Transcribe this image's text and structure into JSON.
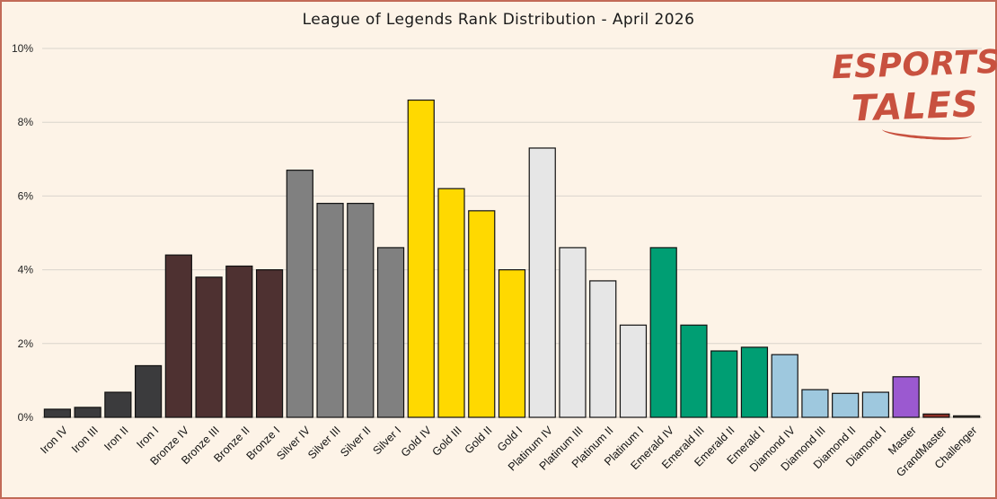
{
  "chart_data": {
    "type": "bar",
    "title": "League of Legends Rank Distribution - April 2026",
    "xlabel": "",
    "ylabel": "",
    "ylim": [
      0,
      10
    ],
    "y_ticks": [
      "0%",
      "2%",
      "4%",
      "6%",
      "8%",
      "10%"
    ],
    "grid": "horizontal",
    "categories": [
      "Iron IV",
      "Iron III",
      "Iron II",
      "Iron I",
      "Bronze IV",
      "Bronze III",
      "Bronze II",
      "Bronze I",
      "Silver IV",
      "Silver III",
      "Silver II",
      "Silver I",
      "Gold IV",
      "Gold III",
      "Gold II",
      "Gold I",
      "Platinum IV",
      "Platinum III",
      "Platinum II",
      "Platinum I",
      "Emerald IV",
      "Emerald III",
      "Emerald II",
      "Emerald I",
      "Diamond IV",
      "Diamond III",
      "Diamond II",
      "Diamond I",
      "Master",
      "GrandMaster",
      "Challenger"
    ],
    "values": [
      0.22,
      0.27,
      0.68,
      1.4,
      4.4,
      3.8,
      4.1,
      4.0,
      6.7,
      5.8,
      5.8,
      4.6,
      8.6,
      6.2,
      5.6,
      4.0,
      7.3,
      4.6,
      3.7,
      2.5,
      4.6,
      2.5,
      1.8,
      1.9,
      1.7,
      0.75,
      0.65,
      0.68,
      1.1,
      0.09,
      0.04
    ],
    "colors": [
      "#3b3b3d",
      "#3b3b3d",
      "#3b3b3d",
      "#3b3b3d",
      "#4e3131",
      "#4e3131",
      "#4e3131",
      "#4e3131",
      "#808080",
      "#808080",
      "#808080",
      "#808080",
      "#ffd900",
      "#ffd900",
      "#ffd900",
      "#ffd900",
      "#e6e6e6",
      "#e6e6e6",
      "#e6e6e6",
      "#e6e6e6",
      "#009e73",
      "#009e73",
      "#009e73",
      "#009e73",
      "#9ec8de",
      "#9ec8de",
      "#9ec8de",
      "#9ec8de",
      "#9b59d0",
      "#8b2e26",
      "#6b5b45"
    ]
  },
  "logo": {
    "line1": "ESPORTS",
    "line2": "TALES"
  },
  "colors": {
    "background": "#fdf3e7",
    "border": "#c26a57",
    "logo": "#c8513f"
  }
}
